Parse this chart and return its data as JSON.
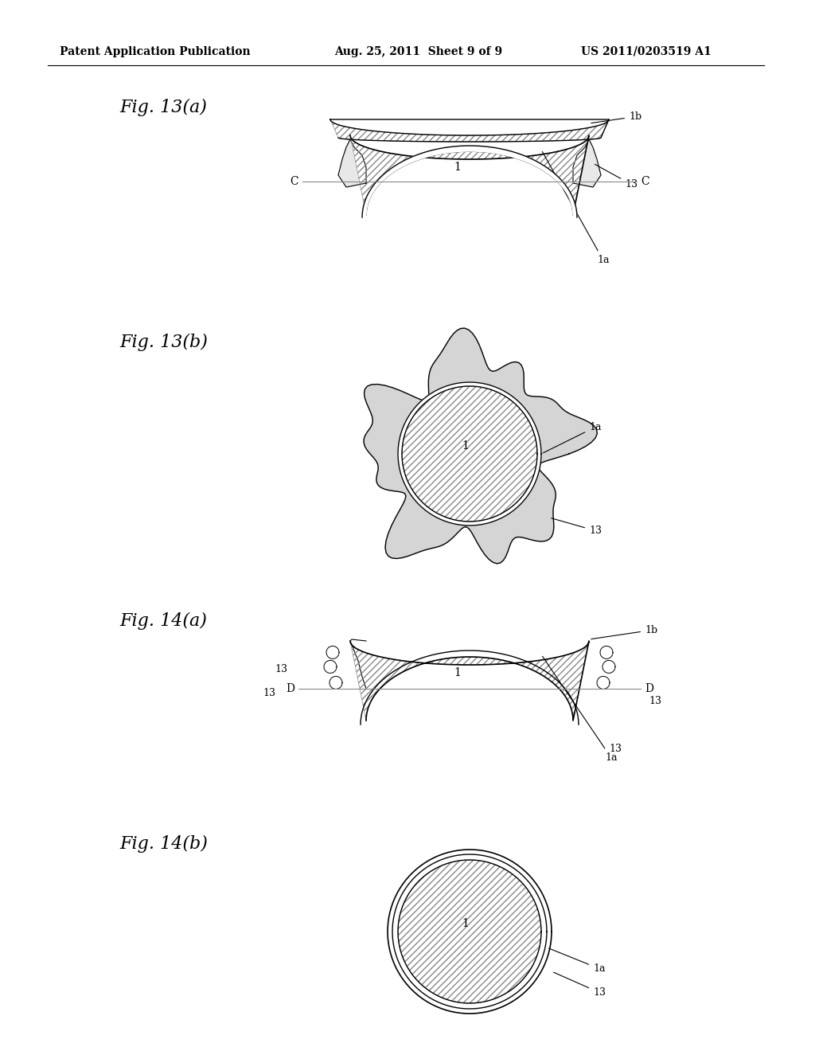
{
  "header_left": "Patent Application Publication",
  "header_mid": "Aug. 25, 2011  Sheet 9 of 9",
  "header_right": "US 2011/0203519 A1",
  "fig13a_label": "Fig. 13(a)",
  "fig13b_label": "Fig. 13(b)",
  "fig14a_label": "Fig. 14(a)",
  "fig14b_label": "Fig. 14(b)",
  "bg_color": "#ffffff",
  "line_color": "#000000",
  "hatch_color": "#555555",
  "stipple_color": "#cccccc"
}
